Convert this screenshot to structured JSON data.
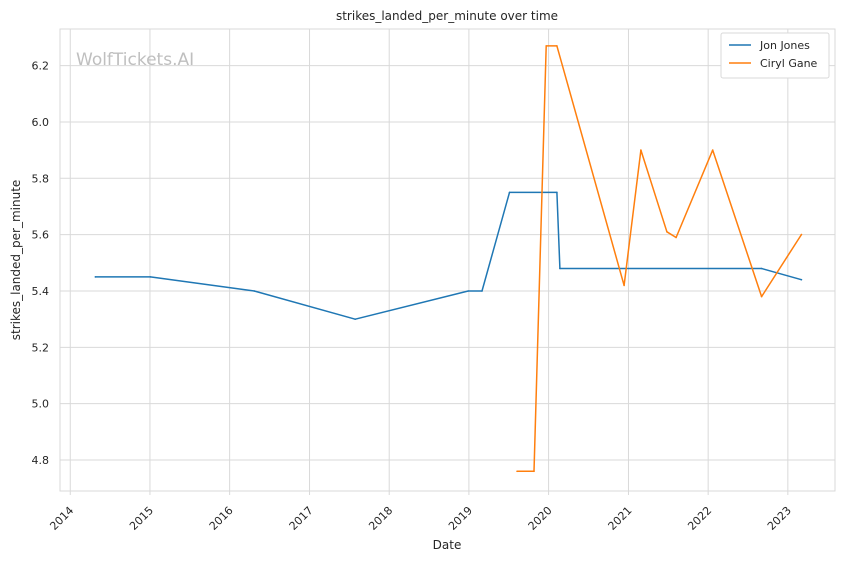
{
  "chart_data": {
    "type": "line",
    "title": "strikes_landed_per_minute over time",
    "xlabel": "Date",
    "ylabel": "strikes_landed_per_minute",
    "watermark": "WolfTickets.AI",
    "xlim": [
      "2013-11-15",
      "2023-08-05"
    ],
    "ylim": [
      4.69,
      6.33
    ],
    "x_ticks": [
      {
        "date": "2014-01-01",
        "label": "2014"
      },
      {
        "date": "2015-01-01",
        "label": "2015"
      },
      {
        "date": "2016-01-01",
        "label": "2016"
      },
      {
        "date": "2017-01-01",
        "label": "2017"
      },
      {
        "date": "2018-01-01",
        "label": "2018"
      },
      {
        "date": "2019-01-01",
        "label": "2019"
      },
      {
        "date": "2020-01-01",
        "label": "2020"
      },
      {
        "date": "2021-01-01",
        "label": "2021"
      },
      {
        "date": "2022-01-01",
        "label": "2022"
      },
      {
        "date": "2023-01-01",
        "label": "2023"
      }
    ],
    "y_ticks": [
      {
        "value": 4.8,
        "label": "4.8"
      },
      {
        "value": 5.0,
        "label": "5.0"
      },
      {
        "value": 5.2,
        "label": "5.2"
      },
      {
        "value": 5.4,
        "label": "5.4"
      },
      {
        "value": 5.6,
        "label": "5.6"
      },
      {
        "value": 5.8,
        "label": "5.8"
      },
      {
        "value": 6.0,
        "label": "6.0"
      },
      {
        "value": 6.2,
        "label": "6.2"
      }
    ],
    "grid": true,
    "legend_position": "top-right",
    "series": [
      {
        "name": "Jon Jones",
        "color": "#1f77b4",
        "points": [
          {
            "x": "2014-04-26",
            "y": 5.45
          },
          {
            "x": "2015-01-03",
            "y": 5.45
          },
          {
            "x": "2016-04-23",
            "y": 5.4
          },
          {
            "x": "2017-07-29",
            "y": 5.3
          },
          {
            "x": "2018-12-29",
            "y": 5.4
          },
          {
            "x": "2019-03-02",
            "y": 5.4
          },
          {
            "x": "2019-07-06",
            "y": 5.75
          },
          {
            "x": "2020-02-08",
            "y": 5.75
          },
          {
            "x": "2020-02-22",
            "y": 5.48
          },
          {
            "x": "2022-09-03",
            "y": 5.48
          },
          {
            "x": "2023-03-04",
            "y": 5.44
          }
        ]
      },
      {
        "name": "Ciryl Gane",
        "color": "#ff7f0e",
        "points": [
          {
            "x": "2019-08-10",
            "y": 4.76
          },
          {
            "x": "2019-10-26",
            "y": 4.76
          },
          {
            "x": "2019-12-21",
            "y": 6.27
          },
          {
            "x": "2020-02-08",
            "y": 6.27
          },
          {
            "x": "2020-12-12",
            "y": 5.42
          },
          {
            "x": "2021-02-27",
            "y": 5.9
          },
          {
            "x": "2021-06-26",
            "y": 5.61
          },
          {
            "x": "2021-08-07",
            "y": 5.59
          },
          {
            "x": "2022-01-22",
            "y": 5.9
          },
          {
            "x": "2022-09-03",
            "y": 5.38
          },
          {
            "x": "2023-03-04",
            "y": 5.6
          }
        ]
      }
    ]
  }
}
